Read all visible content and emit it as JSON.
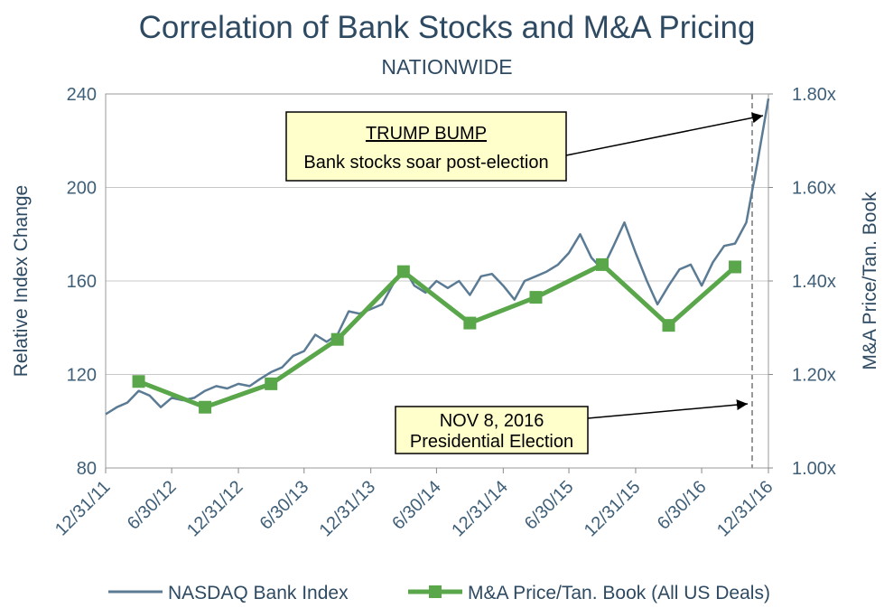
{
  "chart_data": {
    "type": "line",
    "title": "Correlation of Bank Stocks and M&A Pricing",
    "subtitle": "NATIONWIDE",
    "y_label": "Relative Index Change",
    "y2_label": "M&A Price/Tan. Book",
    "xlim": [
      "12/31/11",
      "12/31/16"
    ],
    "xticks": [
      "12/31/11",
      "6/30/12",
      "12/31/12",
      "6/30/13",
      "12/31/13",
      "6/30/14",
      "12/31/14",
      "6/30/15",
      "12/31/15",
      "6/30/16",
      "12/31/16"
    ],
    "ylim": [
      80,
      240
    ],
    "yticks": [
      80,
      120,
      160,
      200,
      240
    ],
    "y2lim": [
      1.0,
      1.8
    ],
    "y2ticks": [
      {
        "value": 1.0,
        "label": "1.00x"
      },
      {
        "value": 1.2,
        "label": "1.20x"
      },
      {
        "value": 1.4,
        "label": "1.40x"
      },
      {
        "value": 1.6,
        "label": "1.60x"
      },
      {
        "value": 1.8,
        "label": "1.80x"
      }
    ],
    "grid": true,
    "legend": "bottom",
    "annotations": [
      {
        "title": "TRUMP BUMP",
        "text": "Bank stocks soar post-election"
      },
      {
        "title": "NOV 8, 2016",
        "text": "Presidential Election"
      }
    ],
    "series": [
      {
        "name": "NASDAQ Bank Index",
        "color": "#5b7b95",
        "axis": "y",
        "x": [
          "12/31/11",
          "1/31/12",
          "2/29/12",
          "3/31/12",
          "4/30/12",
          "5/31/12",
          "6/30/12",
          "7/31/12",
          "8/31/12",
          "9/30/12",
          "10/31/12",
          "11/30/12",
          "12/31/12",
          "1/31/13",
          "2/28/13",
          "3/31/13",
          "4/30/13",
          "5/31/13",
          "6/30/13",
          "7/31/13",
          "8/31/13",
          "9/30/13",
          "10/31/13",
          "11/30/13",
          "12/31/13",
          "1/31/14",
          "2/28/14",
          "3/31/14",
          "4/30/14",
          "5/31/14",
          "6/30/14",
          "7/31/14",
          "8/31/14",
          "9/30/14",
          "10/31/14",
          "11/30/14",
          "12/31/14",
          "1/31/15",
          "2/28/15",
          "3/31/15",
          "4/30/15",
          "5/31/15",
          "6/30/15",
          "7/31/15",
          "8/31/15",
          "9/30/15",
          "10/31/15",
          "11/30/15",
          "12/31/15",
          "1/31/16",
          "2/29/16",
          "3/31/16",
          "4/30/16",
          "5/31/16",
          "6/30/16",
          "7/31/16",
          "8/31/16",
          "9/30/16",
          "10/31/16",
          "11/30/16",
          "12/31/16"
        ],
        "values": [
          103,
          106,
          108,
          113,
          111,
          106,
          110,
          109,
          110,
          113,
          115,
          114,
          116,
          115,
          118,
          121,
          123,
          128,
          130,
          137,
          134,
          137,
          147,
          146,
          148,
          150,
          158,
          166,
          158,
          155,
          160,
          157,
          160,
          154,
          162,
          163,
          158,
          152,
          160,
          162,
          164,
          167,
          172,
          180,
          170,
          165,
          175,
          185,
          172,
          160,
          150,
          158,
          165,
          167,
          158,
          168,
          175,
          176,
          185,
          210,
          238
        ]
      },
      {
        "name": "M&A Price/Tan. Book (All US Deals)",
        "color": "#5aa64a",
        "axis": "y2",
        "x": [
          "3/31/12",
          "9/30/12",
          "3/31/13",
          "9/30/13",
          "3/31/14",
          "9/30/14",
          "3/31/15",
          "9/30/15",
          "3/31/16",
          "9/30/16"
        ],
        "values": [
          1.185,
          1.13,
          1.18,
          1.275,
          1.42,
          1.31,
          1.365,
          1.435,
          1.305,
          1.43
        ]
      }
    ]
  }
}
